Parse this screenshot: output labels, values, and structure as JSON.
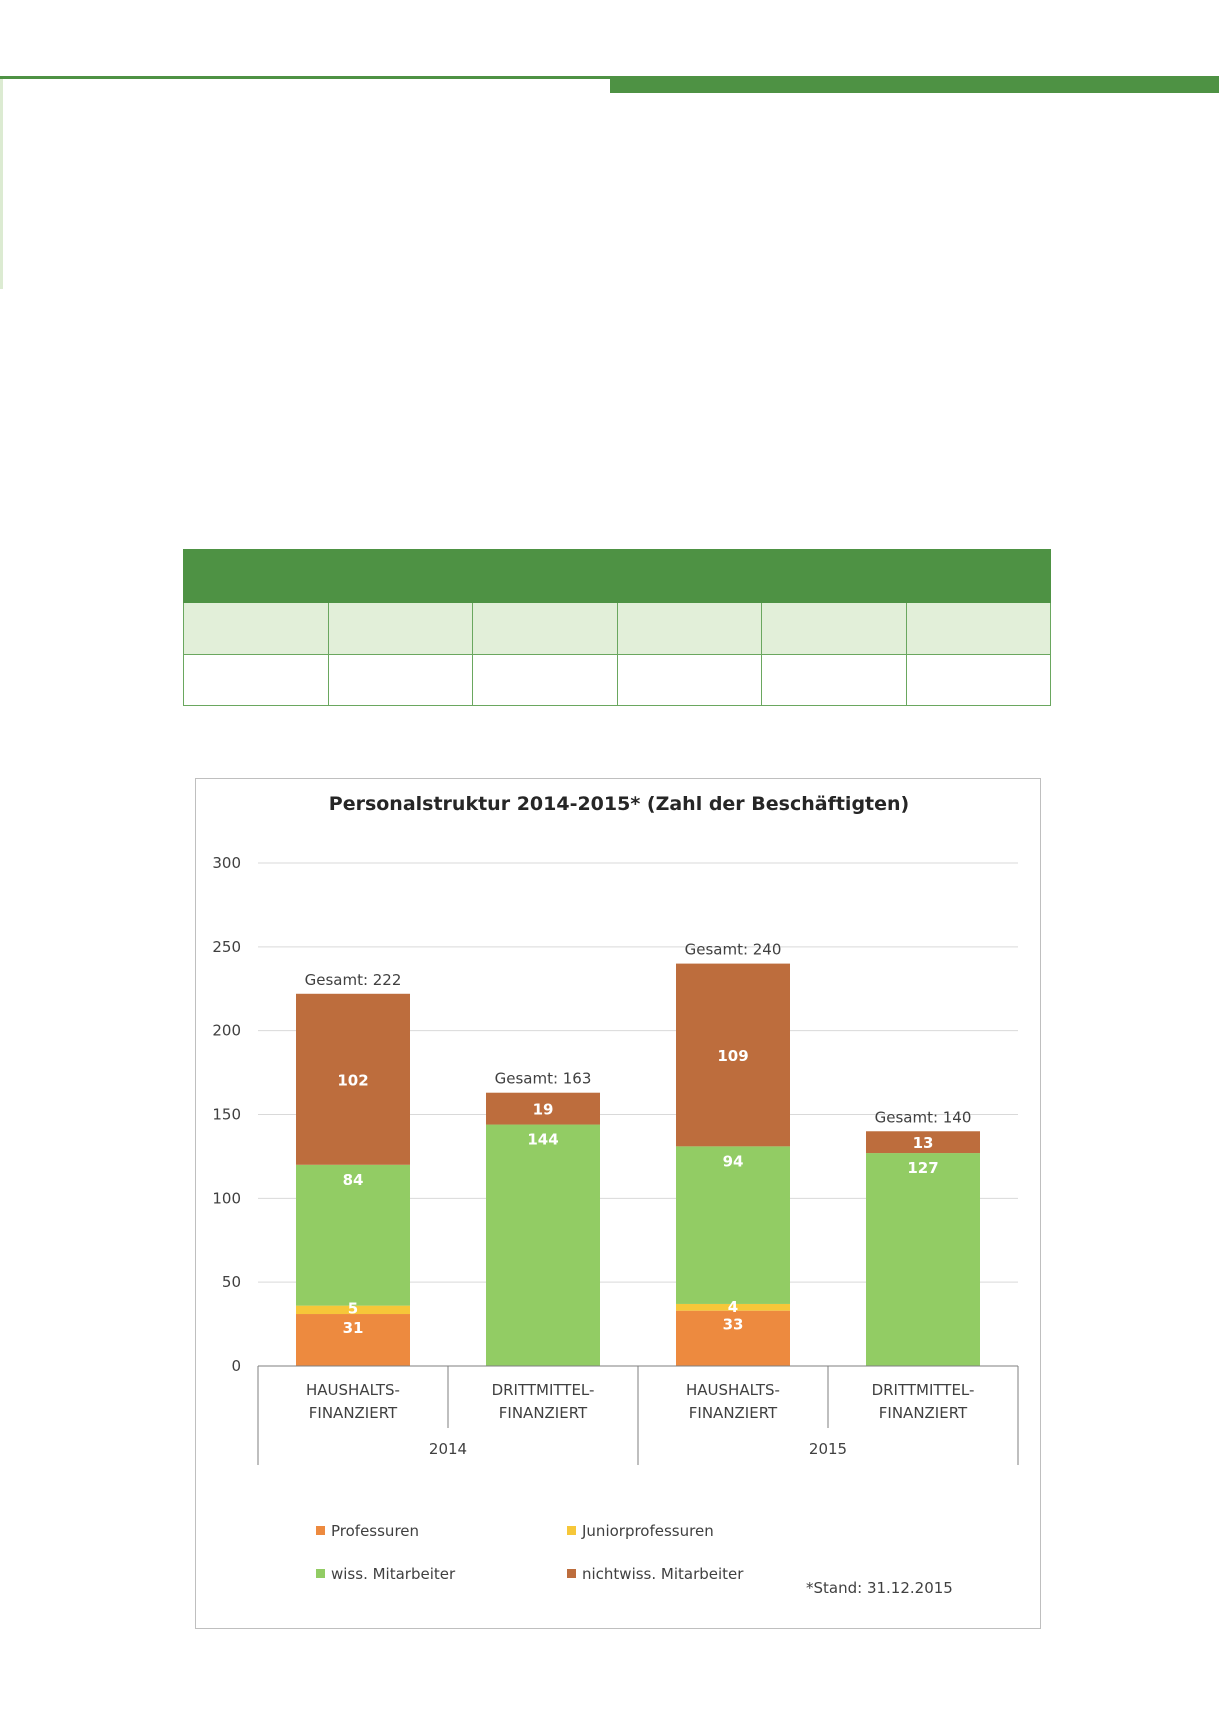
{
  "table": {
    "columns": 6,
    "rows": [
      [
        "",
        "",
        "",
        "",
        "",
        ""
      ],
      [
        "",
        "",
        "",
        "",
        "",
        ""
      ]
    ]
  },
  "chart_data": {
    "type": "bar",
    "stacked": true,
    "title": "Personalstruktur 2014-2015* (Zahl der Beschäftigten)",
    "xlabel": "",
    "ylabel": "",
    "ylim": [
      0,
      300
    ],
    "yticks": [
      0,
      50,
      100,
      150,
      200,
      250,
      300
    ],
    "grid": true,
    "legend_position": "bottom",
    "categories": [
      [
        "HAUSHALTS-",
        "FINANZIERT"
      ],
      [
        "DRITTMITTEL-",
        "FINANZIERT"
      ],
      [
        "HAUSHALTS-",
        "FINANZIERT"
      ],
      [
        "DRITTMITTEL-",
        "FINANZIERT"
      ]
    ],
    "groups": [
      {
        "label": "2014",
        "span": 2
      },
      {
        "label": "2015",
        "span": 2
      }
    ],
    "series": [
      {
        "name": "Professuren",
        "color": "#ed8a3f",
        "values": [
          31,
          0,
          33,
          0
        ]
      },
      {
        "name": "Juniorprofessuren",
        "color": "#f6c739",
        "values": [
          5,
          0,
          4,
          0
        ]
      },
      {
        "name": "wiss. Mitarbeiter",
        "color": "#92cc64",
        "values": [
          84,
          144,
          94,
          127
        ]
      },
      {
        "name": "nichtwiss. Mitarbeiter",
        "color": "#bd6d3d",
        "values": [
          102,
          19,
          109,
          13
        ]
      }
    ],
    "totals": [
      "Gesamt: 222",
      "Gesamt: 163",
      "Gesamt: 240",
      "Gesamt: 140"
    ],
    "footnote": "*Stand: 31.12.2015"
  }
}
